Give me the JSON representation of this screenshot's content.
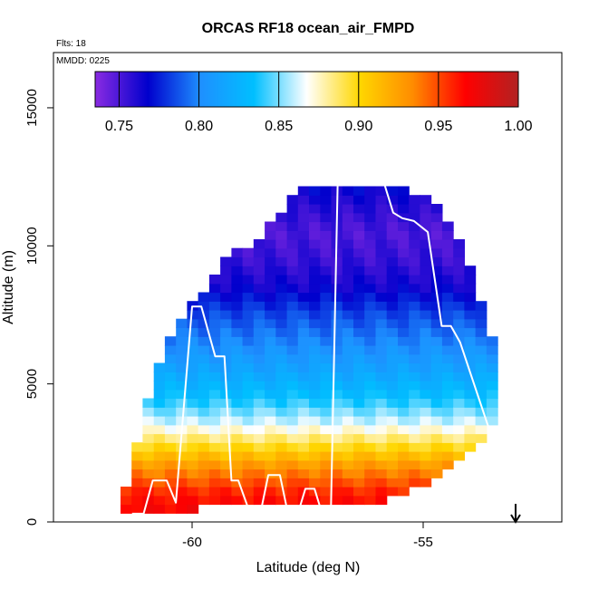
{
  "chart_data": {
    "type": "heatmap",
    "title": "ORCAS RF18 ocean_air_FMPD",
    "annotations": {
      "flights": "Flts: 18",
      "date": "MMDD: 0225"
    },
    "xlabel": "Latitude (deg N)",
    "ylabel": "Altitude (m)",
    "xlim": [
      -63.0,
      -52.0
    ],
    "ylim": [
      0,
      17000
    ],
    "xticks": [
      -60,
      -55
    ],
    "yticks": [
      0,
      5000,
      10000,
      15000
    ],
    "colorbar": {
      "range": [
        0.735,
        1.0
      ],
      "ticks": [
        0.75,
        0.8,
        0.85,
        0.9,
        0.95,
        1.0
      ],
      "tick_labels": [
        "0.75",
        "0.80",
        "0.85",
        "0.90",
        "0.95",
        "1.00"
      ],
      "colors": [
        "#8a2be2",
        "#0000cd",
        "#1e90ff",
        "#00bfff",
        "#ffffff",
        "#ffd700",
        "#ff8c00",
        "#ff0000",
        "#b22222"
      ]
    },
    "grid": {
      "x_step": 0.24,
      "y_step": 320,
      "value_by_altitude": [
        [
          0,
          0.975
        ],
        [
          1000,
          0.962
        ],
        [
          2000,
          0.93
        ],
        [
          2800,
          0.895
        ],
        [
          3500,
          0.865
        ],
        [
          4500,
          0.835
        ],
        [
          5500,
          0.815
        ],
        [
          6500,
          0.8
        ],
        [
          7500,
          0.785
        ],
        [
          8500,
          0.765
        ],
        [
          9500,
          0.755
        ],
        [
          10500,
          0.75
        ],
        [
          11500,
          0.76
        ],
        [
          12300,
          0.77
        ]
      ],
      "envelope": [
        [
          -61.55,
          300,
          600
        ],
        [
          -61.2,
          300,
          2800
        ],
        [
          -61.0,
          300,
          4000
        ],
        [
          -60.8,
          300,
          5300
        ],
        [
          -60.5,
          300,
          6500
        ],
        [
          -60.2,
          400,
          7600
        ],
        [
          -59.8,
          500,
          8200
        ],
        [
          -59.4,
          600,
          9300
        ],
        [
          -59.0,
          600,
          9800
        ],
        [
          -58.6,
          600,
          10300
        ],
        [
          -58.2,
          700,
          11000
        ],
        [
          -57.8,
          700,
          11800
        ],
        [
          -57.4,
          700,
          12200
        ],
        [
          -57.0,
          700,
          12200
        ],
        [
          -56.6,
          600,
          12300
        ],
        [
          -56.2,
          700,
          12300
        ],
        [
          -55.8,
          800,
          12200
        ],
        [
          -55.4,
          1000,
          12100
        ],
        [
          -55.0,
          1300,
          11800
        ],
        [
          -54.6,
          1800,
          11200
        ],
        [
          -54.2,
          2400,
          10000
        ],
        [
          -53.9,
          2800,
          8800
        ],
        [
          -53.6,
          3200,
          7400
        ],
        [
          -53.3,
          3900,
          5500
        ]
      ]
    },
    "flight_track": {
      "color": "#ffffff",
      "lat": [
        -61.3,
        -61.05,
        -60.85,
        -60.55,
        -60.35,
        -60.0,
        -59.8,
        -59.5,
        -59.3,
        -59.15,
        -59.0,
        -58.7,
        -58.55,
        -58.35,
        -58.1,
        -57.9,
        -57.75,
        -57.55,
        -57.35,
        -57.15,
        -57.0,
        -56.85,
        -56.65,
        -56.45,
        -56.25,
        -56.05,
        -55.85,
        -55.65,
        -55.45,
        -55.2,
        -54.9,
        -54.6,
        -54.4,
        -54.2,
        -54.0,
        -53.8,
        -53.6,
        -53.4,
        -53.25
      ],
      "alt": [
        300,
        300,
        1500,
        1500,
        700,
        7800,
        7800,
        6000,
        6000,
        1500,
        1500,
        100,
        100,
        1700,
        1700,
        100,
        100,
        1200,
        1200,
        100,
        100,
        12200,
        12200,
        12250,
        12250,
        12300,
        12300,
        11200,
        11000,
        10900,
        10500,
        7100,
        7100,
        6500,
        5500,
        4500,
        3500,
        2800,
        2800
      ]
    },
    "marker": {
      "type": "down-arrow",
      "lat": -53.0
    }
  }
}
